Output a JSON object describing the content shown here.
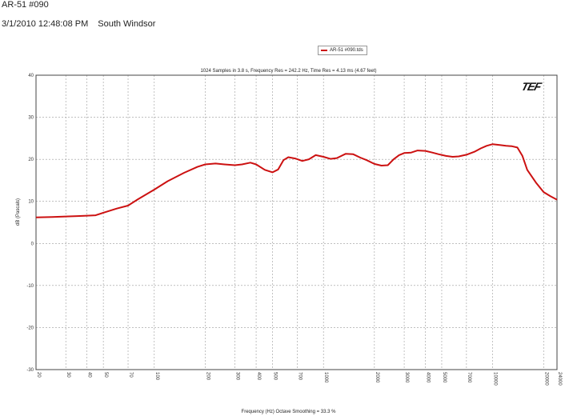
{
  "header": {
    "title": "AR-51 #090",
    "datetime": "3/1/2010 12:48:08 PM",
    "location": "South Windsor"
  },
  "brand": "TEF",
  "colors": {
    "curve": "#cc1111",
    "grid": "#9a9a9a",
    "frame": "#444444"
  },
  "chart_data": {
    "type": "line",
    "title": "1024 Samples in 3.8 s, Frequency Res = 242.2 Hz, Time Res = 4.13 ms (4.67 feet)",
    "xlabel": "Frequency (Hz) Octave Smoothing = 33.3 %",
    "ylabel": "dB (Pascals)",
    "xscale": "log",
    "xlim": [
      20,
      24000
    ],
    "ylim": [
      -30,
      40
    ],
    "grid": true,
    "legend_placement": "top-center",
    "xticks": [
      20,
      30,
      40,
      50,
      70,
      100,
      200,
      300,
      400,
      500,
      700,
      1000,
      2000,
      3000,
      4000,
      5000,
      7000,
      10000,
      20000,
      24000
    ],
    "xtick_labels": [
      "20",
      "30",
      "40",
      "50",
      "70",
      "100",
      "200",
      "300",
      "400",
      "500",
      "700",
      "1000",
      "2000",
      "3000",
      "4000",
      "5000",
      "7000",
      "10000",
      "20000",
      "24000"
    ],
    "yticks": [
      -30,
      -20,
      -10,
      0,
      10,
      20,
      30,
      40
    ],
    "ytick_labels": [
      "-30",
      "-20",
      "-10",
      "0",
      "10",
      "20",
      "30",
      "40"
    ],
    "series": [
      {
        "name": "AR-51 #090.tds",
        "x": [
          20,
          25,
          30,
          35,
          40,
          45,
          50,
          60,
          70,
          80,
          100,
          120,
          150,
          180,
          200,
          230,
          260,
          300,
          330,
          370,
          400,
          450,
          500,
          540,
          580,
          620,
          680,
          750,
          820,
          900,
          1000,
          1100,
          1200,
          1350,
          1500,
          1650,
          1800,
          2000,
          2200,
          2400,
          2600,
          2800,
          3000,
          3300,
          3600,
          4000,
          4400,
          4800,
          5300,
          5800,
          6300,
          7000,
          7800,
          8500,
          9200,
          10000,
          11000,
          12000,
          13000,
          14000,
          15000,
          16000,
          18000,
          20000,
          22000,
          24000
        ],
        "y": [
          6.2,
          6.3,
          6.4,
          6.5,
          6.6,
          6.7,
          7.3,
          8.3,
          9.0,
          10.5,
          12.8,
          14.8,
          16.8,
          18.2,
          18.8,
          19.0,
          18.8,
          18.6,
          18.8,
          19.2,
          18.8,
          17.5,
          16.9,
          17.6,
          19.8,
          20.5,
          20.2,
          19.6,
          20.0,
          21.0,
          20.6,
          20.1,
          20.3,
          21.3,
          21.2,
          20.4,
          19.8,
          18.9,
          18.5,
          18.6,
          20.0,
          21.0,
          21.5,
          21.6,
          22.1,
          22.0,
          21.6,
          21.2,
          20.8,
          20.6,
          20.7,
          21.1,
          21.8,
          22.6,
          23.2,
          23.6,
          23.4,
          23.2,
          23.1,
          22.8,
          20.8,
          17.5,
          14.5,
          12.2,
          11.2,
          10.4
        ]
      }
    ]
  }
}
